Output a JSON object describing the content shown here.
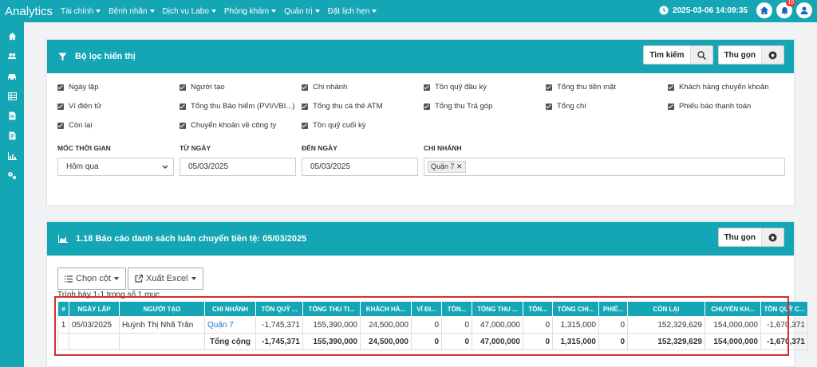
{
  "topbar": {
    "brand": "Analytics",
    "menu": [
      "Tài chính",
      "Bệnh nhân",
      "Dịch vụ Labo",
      "Phòng khám",
      "Quản trị",
      "Đặt lịch hẹn"
    ],
    "datetime": "2025-03-06 14:09:35",
    "notif_count": "10"
  },
  "filter": {
    "title": "Bộ lọc hiển thị",
    "search_label": "Tìm kiếm",
    "collapse_label": "Thu gọn",
    "checkboxes": [
      "Ngày lập",
      "Người tạo",
      "Chi nhánh",
      "Tồn quỹ đầu kỳ",
      "Tổng thu tiền mặt",
      "Khách hàng chuyển khoản",
      "Ví điện tử",
      "Tổng thu Bảo hiểm (PVI/VBI...)",
      "Tổng thu cà thẻ ATM",
      "Tổng thu Trả góp",
      "Tổng chi",
      "Phiếu báo thanh toán",
      "Còn lại",
      "Chuyển khoản về công ty",
      "Tồn quỹ cuối kỳ"
    ],
    "time_label": "MỐC THỜI GIAN",
    "time_value": "Hôm qua",
    "from_label": "TỪ NGÀY",
    "from_value": "05/03/2025",
    "to_label": "ĐẾN NGÀY",
    "to_value": "05/03/2025",
    "branch_label": "CHI NHÁNH",
    "branch_tag": "Quận 7"
  },
  "report": {
    "title": "1.18 Báo cáo danh sách luân chuyển tiền tệ: 05/03/2025",
    "collapse_label": "Thu gọn",
    "columns_btn": "Chọn cột",
    "excel_btn": "Xuất Excel",
    "info": "Trình bày 1-1 trong số 1 mục",
    "headers": [
      "#",
      "NGÀY LẬP",
      "NGƯỜI TẠO",
      "CHI NHÁNH",
      "TỒN QUỸ ...",
      "TỔNG THU TI...",
      "KHÁCH HÀ...",
      "VÍ ĐI...",
      "TỒN...",
      "TỔNG THU ...",
      "TỒN...",
      "TỔNG CHI...",
      "PHIẾ...",
      "CÒN LẠI",
      "CHUYỂN KH...",
      "TỒN QUỸ C..."
    ],
    "row": [
      "1",
      "05/03/2025",
      "Huỳnh Thị Nhã Trân",
      "Quận 7",
      "-1,745,371",
      "155,390,000",
      "24,500,000",
      "0",
      "0",
      "47,000,000",
      "0",
      "1,315,000",
      "0",
      "152,329,629",
      "154,000,000",
      "-1,670,371"
    ],
    "total": [
      "",
      "",
      "",
      "Tổng cộng",
      "-1,745,371",
      "155,390,000",
      "24,500,000",
      "0",
      "0",
      "47,000,000",
      "0",
      "1,315,000",
      "0",
      "152,329,629",
      "154,000,000",
      "-1,670,371"
    ]
  }
}
